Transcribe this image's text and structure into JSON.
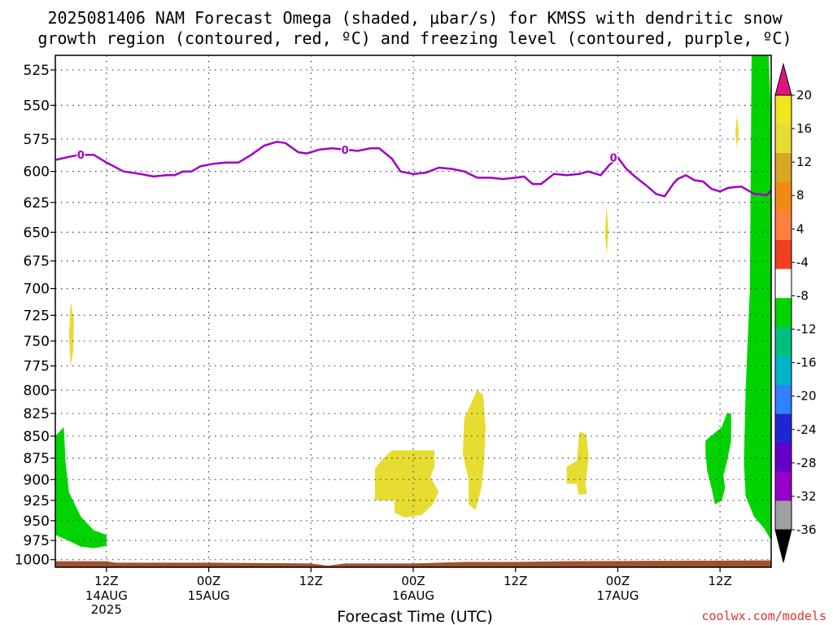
{
  "title": {
    "line1": "2025081406 NAM Forecast Omega (shaded, μbar/s) for KMSS with dendritic snow",
    "line2": "growth region (contoured, red, ºC) and freezing level (contoured, purple, ºC)"
  },
  "credit": "coolwx.com/models",
  "chart_data": {
    "type": "area",
    "title": "2025081406 NAM Forecast Omega (shaded, μbar/s) for KMSS with dendritic snow growth region (contoured, red, ºC) and freezing level (contoured, purple, ºC)",
    "xlabel": "Forecast Time (UTC)",
    "ylabel": "",
    "x_unit": "hours since 2025-08-14 06Z",
    "xlim": [
      0,
      84
    ],
    "ylim": [
      1010,
      515
    ],
    "y_scale": "log-pressure",
    "grid": true,
    "x_ticks": [
      {
        "t": 6,
        "hour": "12Z",
        "date": "14AUG",
        "year": "2025"
      },
      {
        "t": 18,
        "hour": "00Z",
        "date": "15AUG",
        "year": ""
      },
      {
        "t": 30,
        "hour": "12Z",
        "date": "",
        "year": ""
      },
      {
        "t": 42,
        "hour": "00Z",
        "date": "16AUG",
        "year": ""
      },
      {
        "t": 54,
        "hour": "12Z",
        "date": "",
        "year": ""
      },
      {
        "t": 66,
        "hour": "00Z",
        "date": "17AUG",
        "year": ""
      },
      {
        "t": 78,
        "hour": "12Z",
        "date": "",
        "year": ""
      }
    ],
    "y_ticks": [
      525,
      550,
      575,
      600,
      625,
      650,
      675,
      700,
      725,
      750,
      775,
      800,
      825,
      850,
      875,
      900,
      925,
      950,
      975,
      1000
    ],
    "freezing_level": {
      "label": "0",
      "label_positions": [
        [
          3,
          587
        ],
        [
          34,
          583
        ],
        [
          65.5,
          589
        ]
      ],
      "points": [
        [
          0,
          591
        ],
        [
          2,
          588
        ],
        [
          3,
          587
        ],
        [
          4.5,
          587
        ],
        [
          6,
          593
        ],
        [
          8,
          600
        ],
        [
          10,
          602
        ],
        [
          11.5,
          604
        ],
        [
          13,
          603
        ],
        [
          14,
          603
        ],
        [
          15,
          600
        ],
        [
          16,
          600
        ],
        [
          17,
          596
        ],
        [
          18.5,
          594
        ],
        [
          20,
          593
        ],
        [
          21.5,
          593
        ],
        [
          23,
          587
        ],
        [
          24.5,
          580
        ],
        [
          26,
          577
        ],
        [
          27,
          578
        ],
        [
          28.5,
          585
        ],
        [
          29.5,
          586
        ],
        [
          31,
          583
        ],
        [
          32.5,
          582
        ],
        [
          34,
          583
        ],
        [
          35.5,
          584
        ],
        [
          37,
          582
        ],
        [
          38,
          582
        ],
        [
          39.5,
          590
        ],
        [
          40.5,
          600
        ],
        [
          42,
          602
        ],
        [
          43.5,
          601
        ],
        [
          45,
          597
        ],
        [
          46.5,
          598
        ],
        [
          48,
          600
        ],
        [
          49.5,
          605
        ],
        [
          51,
          605
        ],
        [
          52.5,
          606
        ],
        [
          54,
          605
        ],
        [
          55,
          604
        ],
        [
          56,
          610
        ],
        [
          57,
          610
        ],
        [
          58.5,
          602
        ],
        [
          60,
          603
        ],
        [
          61.5,
          602
        ],
        [
          62.5,
          600
        ],
        [
          64,
          603
        ],
        [
          65,
          595
        ],
        [
          66,
          589
        ],
        [
          67,
          598
        ],
        [
          68,
          604
        ],
        [
          69.5,
          612
        ],
        [
          70.5,
          618
        ],
        [
          71.5,
          620
        ],
        [
          72.5,
          610
        ],
        [
          73,
          606
        ],
        [
          74,
          603
        ],
        [
          75,
          607
        ],
        [
          76,
          608
        ],
        [
          77,
          614
        ],
        [
          78,
          616
        ],
        [
          79,
          613
        ],
        [
          80.5,
          612
        ],
        [
          82,
          618
        ],
        [
          83.5,
          619
        ],
        [
          84,
          615
        ]
      ]
    },
    "omega_regions": [
      {
        "omega_bin": "-8 to -4",
        "color": "#00d400",
        "points": [
          [
            0,
            850
          ],
          [
            1,
            840
          ],
          [
            1.2,
            880
          ],
          [
            1.6,
            915
          ],
          [
            3,
            945
          ],
          [
            4.5,
            962
          ],
          [
            6,
            968
          ],
          [
            6,
            982
          ],
          [
            4.5,
            985
          ],
          [
            3,
            983
          ],
          [
            1.5,
            975
          ],
          [
            0,
            968
          ]
        ]
      },
      {
        "omega_bin": "-8 to -4",
        "color": "#00d400",
        "points": [
          [
            76.3,
            855
          ],
          [
            78.2,
            840
          ],
          [
            78.8,
            825
          ],
          [
            79.3,
            825
          ],
          [
            79.3,
            855
          ],
          [
            78.8,
            880
          ],
          [
            78.4,
            895
          ],
          [
            78.6,
            910
          ],
          [
            78.2,
            925
          ],
          [
            77.4,
            930
          ],
          [
            77,
            910
          ],
          [
            76.5,
            890
          ],
          [
            76.3,
            870
          ]
        ]
      },
      {
        "omega_bin": "-8 to -4",
        "color": "#00d400",
        "points": [
          [
            81.7,
            515
          ],
          [
            83.7,
            515
          ],
          [
            84,
            560
          ],
          [
            84,
            975
          ],
          [
            83.2,
            960
          ],
          [
            82,
            945
          ],
          [
            81,
            920
          ],
          [
            80.8,
            880
          ],
          [
            81,
            800
          ],
          [
            81.5,
            700
          ],
          [
            81.6,
            600
          ]
        ]
      },
      {
        "omega_bin": "4 to 8",
        "color": "#e6dc32",
        "points": [
          [
            1.8,
            712
          ],
          [
            2.2,
            730
          ],
          [
            2.1,
            760
          ],
          [
            1.8,
            775
          ],
          [
            1.6,
            745
          ]
        ]
      },
      {
        "omega_bin": "4 to 8",
        "color": "#e6dc32",
        "points": [
          [
            38.5,
            875
          ],
          [
            39.5,
            866
          ],
          [
            42,
            866
          ],
          [
            44.5,
            866
          ],
          [
            44.5,
            885
          ],
          [
            44,
            897
          ],
          [
            45,
            915
          ],
          [
            44.3,
            930
          ],
          [
            43,
            943
          ],
          [
            41,
            946
          ],
          [
            39.8,
            940
          ],
          [
            39.8,
            925
          ],
          [
            37.5,
            925
          ],
          [
            37.5,
            887
          ]
        ]
      },
      {
        "omega_bin": "4 to 8",
        "color": "#e6dc32",
        "points": [
          [
            49.5,
            800
          ],
          [
            50.2,
            805
          ],
          [
            50.5,
            840
          ],
          [
            50.3,
            880
          ],
          [
            50,
            910
          ],
          [
            49.3,
            937
          ],
          [
            48.5,
            930
          ],
          [
            48.5,
            900
          ],
          [
            47.8,
            870
          ],
          [
            48,
            830
          ]
        ]
      },
      {
        "omega_bin": "4 to 8",
        "color": "#e6dc32",
        "points": [
          [
            61.5,
            845
          ],
          [
            62.3,
            848
          ],
          [
            62.6,
            875
          ],
          [
            62.2,
            905
          ],
          [
            62.4,
            917
          ],
          [
            61.4,
            918
          ],
          [
            61.2,
            905
          ],
          [
            60,
            905
          ],
          [
            60,
            885
          ],
          [
            61.2,
            878
          ]
        ]
      },
      {
        "omega_bin": "4 to 8",
        "color": "#e6dc32",
        "points": [
          [
            64.7,
            628
          ],
          [
            64.9,
            650
          ],
          [
            64.7,
            670
          ],
          [
            64.5,
            650
          ]
        ]
      },
      {
        "omega_bin": "4 to 8",
        "color": "#e6dc32",
        "points": [
          [
            80,
            557
          ],
          [
            80.2,
            570
          ],
          [
            80,
            582
          ],
          [
            79.8,
            570
          ]
        ]
      }
    ],
    "terrain": {
      "color": "#a0522d",
      "points": [
        [
          0,
          1002
        ],
        [
          6,
          1002
        ],
        [
          7,
          1004
        ],
        [
          18,
          1004
        ],
        [
          30,
          1005
        ],
        [
          32,
          1008
        ],
        [
          34,
          1005
        ],
        [
          42,
          1005
        ],
        [
          48,
          1003
        ],
        [
          54,
          1003
        ],
        [
          60,
          1002
        ],
        [
          84,
          1001
        ]
      ]
    },
    "colorbar": {
      "labels": [
        "20",
        "16",
        "12",
        "8",
        "4",
        "-4",
        "-8",
        "-12",
        "-16",
        "-20",
        "-24",
        "-28",
        "-32",
        "-36"
      ],
      "colors": [
        "#f0e61e",
        "#e6dc32",
        "#daa520",
        "#f08a14",
        "#ff7f3f",
        "#f04020",
        "#ffffff",
        "#00d400",
        "#00c080",
        "#00b4c8",
        "#3080ff",
        "#1e28d2",
        "#6400c8",
        "#9600c8",
        "#a0a0a0"
      ],
      "over_color": "#e01480",
      "under_color": "#000000"
    }
  }
}
